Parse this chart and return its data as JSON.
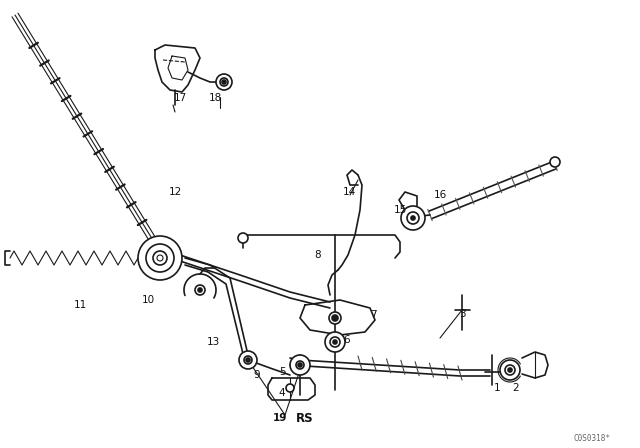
{
  "bg_color": "#ffffff",
  "line_color": "#1a1a1a",
  "label_color": "#111111",
  "code": "C0S0318*",
  "figsize": [
    6.4,
    4.48
  ],
  "dpi": 100,
  "label_positions": [
    [
      "1",
      497,
      388
    ],
    [
      "2",
      516,
      388
    ],
    [
      "3",
      462,
      314
    ],
    [
      "4",
      282,
      393
    ],
    [
      "5",
      282,
      372
    ],
    [
      "6",
      347,
      340
    ],
    [
      "7",
      373,
      315
    ],
    [
      "8",
      318,
      255
    ],
    [
      "9",
      257,
      375
    ],
    [
      "10",
      148,
      300
    ],
    [
      "11",
      80,
      305
    ],
    [
      "12",
      175,
      192
    ],
    [
      "13",
      213,
      342
    ],
    [
      "14",
      349,
      192
    ],
    [
      "15",
      400,
      210
    ],
    [
      "16",
      440,
      195
    ],
    [
      "17",
      180,
      98
    ],
    [
      "18",
      215,
      98
    ],
    [
      "19",
      280,
      418
    ],
    [
      "RS",
      305,
      418
    ]
  ]
}
